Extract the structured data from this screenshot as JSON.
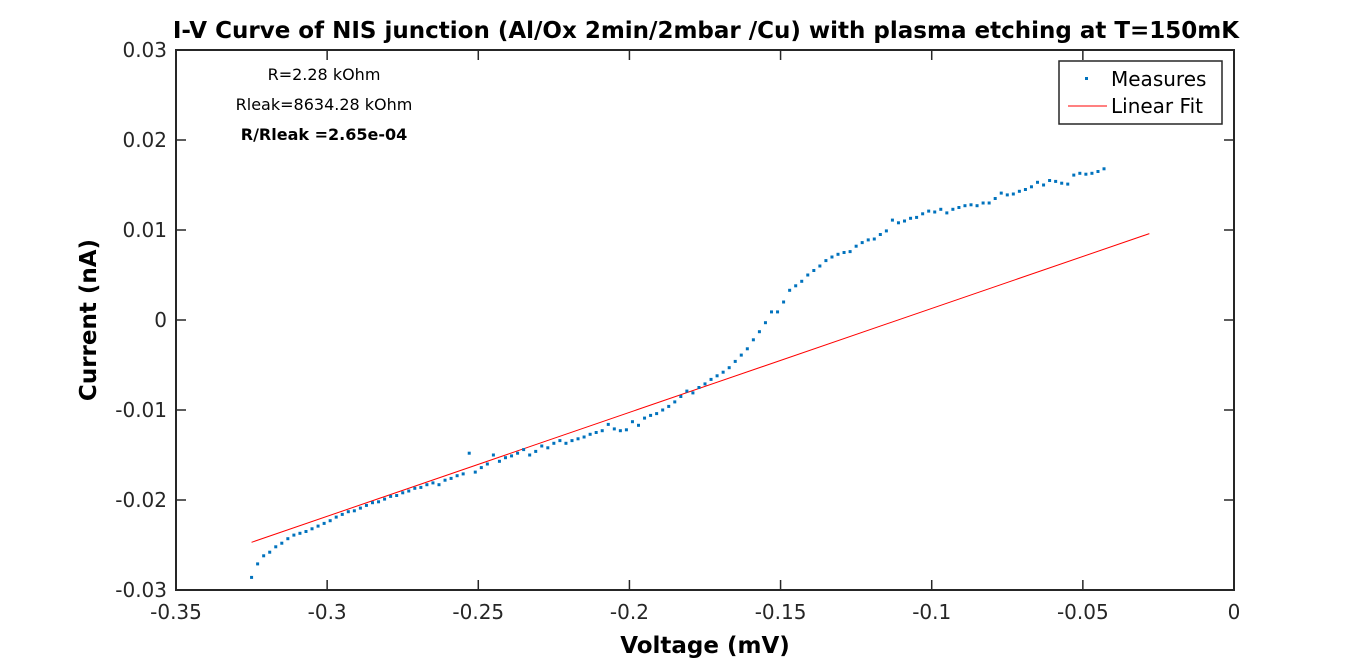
{
  "chart_data": {
    "type": "scatter",
    "title": "I-V Curve of NIS junction (Al/Ox 2min/2mbar /Cu) with plasma etching at T=150mK",
    "xlabel": "Voltage (mV)",
    "ylabel": "Current (nA)",
    "xlim": [
      -0.35,
      0
    ],
    "ylim": [
      -0.03,
      0.03
    ],
    "xticks": [
      "-0.35",
      "-0.3",
      "-0.25",
      "-0.2",
      "-0.15",
      "-0.1",
      "-0.05",
      "0"
    ],
    "xtick_values": [
      -0.35,
      -0.3,
      -0.25,
      -0.2,
      -0.15,
      -0.1,
      -0.05,
      0
    ],
    "yticks": [
      "-0.03",
      "-0.02",
      "-0.01",
      "0",
      "0.01",
      "0.02",
      "0.03"
    ],
    "ytick_values": [
      -0.03,
      -0.02,
      -0.01,
      0,
      0.01,
      0.02,
      0.03
    ],
    "grid": false,
    "legend_position": "top-right",
    "annotations": [
      "R=2.28 kOhm",
      "Rleak=8634.28 kOhm",
      "R/Rleak =2.65e-04"
    ],
    "series": [
      {
        "name": "Measures",
        "kind": "scatter",
        "color": "#0072BD",
        "x": [
          -0.325,
          -0.323,
          -0.321,
          -0.319,
          -0.317,
          -0.315,
          -0.313,
          -0.311,
          -0.309,
          -0.307,
          -0.305,
          -0.303,
          -0.301,
          -0.299,
          -0.297,
          -0.295,
          -0.293,
          -0.291,
          -0.289,
          -0.287,
          -0.285,
          -0.283,
          -0.281,
          -0.279,
          -0.277,
          -0.275,
          -0.273,
          -0.271,
          -0.269,
          -0.267,
          -0.265,
          -0.263,
          -0.261,
          -0.259,
          -0.257,
          -0.255,
          -0.253,
          -0.251,
          -0.249,
          -0.247,
          -0.245,
          -0.243,
          -0.241,
          -0.239,
          -0.237,
          -0.235,
          -0.233,
          -0.231,
          -0.229,
          -0.227,
          -0.225,
          -0.223,
          -0.221,
          -0.219,
          -0.217,
          -0.215,
          -0.213,
          -0.211,
          -0.209,
          -0.207,
          -0.205,
          -0.203,
          -0.201,
          -0.199,
          -0.197,
          -0.195,
          -0.193,
          -0.191,
          -0.189,
          -0.187,
          -0.185,
          -0.183,
          -0.181,
          -0.179,
          -0.177,
          -0.175,
          -0.173,
          -0.171,
          -0.169,
          -0.167,
          -0.165,
          -0.163,
          -0.161,
          -0.159,
          -0.157,
          -0.155,
          -0.153,
          -0.151,
          -0.149,
          -0.147,
          -0.145,
          -0.143,
          -0.141,
          -0.139,
          -0.137,
          -0.135,
          -0.133,
          -0.131,
          -0.129,
          -0.127,
          -0.125,
          -0.123,
          -0.121,
          -0.119,
          -0.117,
          -0.115,
          -0.113,
          -0.111,
          -0.109,
          -0.107,
          -0.105,
          -0.103,
          -0.101,
          -0.099,
          -0.097,
          -0.095,
          -0.093,
          -0.091,
          -0.089,
          -0.087,
          -0.085,
          -0.083,
          -0.081,
          -0.079,
          -0.077,
          -0.075,
          -0.073,
          -0.071,
          -0.069,
          -0.067,
          -0.065,
          -0.063,
          -0.061,
          -0.059,
          -0.057,
          -0.055,
          -0.053,
          -0.051,
          -0.049,
          -0.047,
          -0.045,
          -0.043
        ],
        "y": [
          -0.0286,
          -0.0271,
          -0.0262,
          -0.0258,
          -0.0252,
          -0.0248,
          -0.0243,
          -0.0239,
          -0.0237,
          -0.0235,
          -0.0232,
          -0.0229,
          -0.0226,
          -0.0223,
          -0.0219,
          -0.0216,
          -0.0213,
          -0.0212,
          -0.0209,
          -0.0206,
          -0.0203,
          -0.0202,
          -0.0199,
          -0.0196,
          -0.0195,
          -0.0192,
          -0.019,
          -0.0187,
          -0.0186,
          -0.0183,
          -0.0181,
          -0.0183,
          -0.0178,
          -0.0176,
          -0.0173,
          -0.0171,
          -0.0148,
          -0.0169,
          -0.0164,
          -0.016,
          -0.015,
          -0.0157,
          -0.0153,
          -0.0151,
          -0.0148,
          -0.0144,
          -0.015,
          -0.0146,
          -0.014,
          -0.0142,
          -0.0137,
          -0.0134,
          -0.0137,
          -0.0134,
          -0.0132,
          -0.013,
          -0.0127,
          -0.0125,
          -0.0123,
          -0.0116,
          -0.0121,
          -0.0123,
          -0.0122,
          -0.0113,
          -0.0117,
          -0.0109,
          -0.0106,
          -0.0104,
          -0.01,
          -0.0096,
          -0.0091,
          -0.0085,
          -0.0079,
          -0.0081,
          -0.0075,
          -0.0071,
          -0.0066,
          -0.0062,
          -0.0058,
          -0.0053,
          -0.0046,
          -0.0039,
          -0.0032,
          -0.0022,
          -0.0013,
          -0.0003,
          0.0009,
          0.0009,
          0.002,
          0.0033,
          0.0038,
          0.0043,
          0.005,
          0.0055,
          0.006,
          0.0066,
          0.007,
          0.0073,
          0.0075,
          0.0076,
          0.0082,
          0.0086,
          0.0089,
          0.009,
          0.0095,
          0.0099,
          0.0111,
          0.0108,
          0.011,
          0.0113,
          0.0114,
          0.0118,
          0.0121,
          0.012,
          0.0123,
          0.0119,
          0.0123,
          0.0125,
          0.0127,
          0.0128,
          0.0127,
          0.013,
          0.013,
          0.0135,
          0.0141,
          0.0139,
          0.014,
          0.0143,
          0.0145,
          0.0148,
          0.0153,
          0.015,
          0.0155,
          0.0154,
          0.0152,
          0.0151,
          0.0161,
          0.0163,
          0.0162,
          0.0163,
          0.0165,
          0.0168
        ]
      },
      {
        "name": "Linear Fit",
        "kind": "line",
        "color": "#FF0000",
        "x": [
          -0.325,
          -0.028
        ],
        "y": [
          -0.0247,
          0.0096
        ]
      }
    ]
  }
}
